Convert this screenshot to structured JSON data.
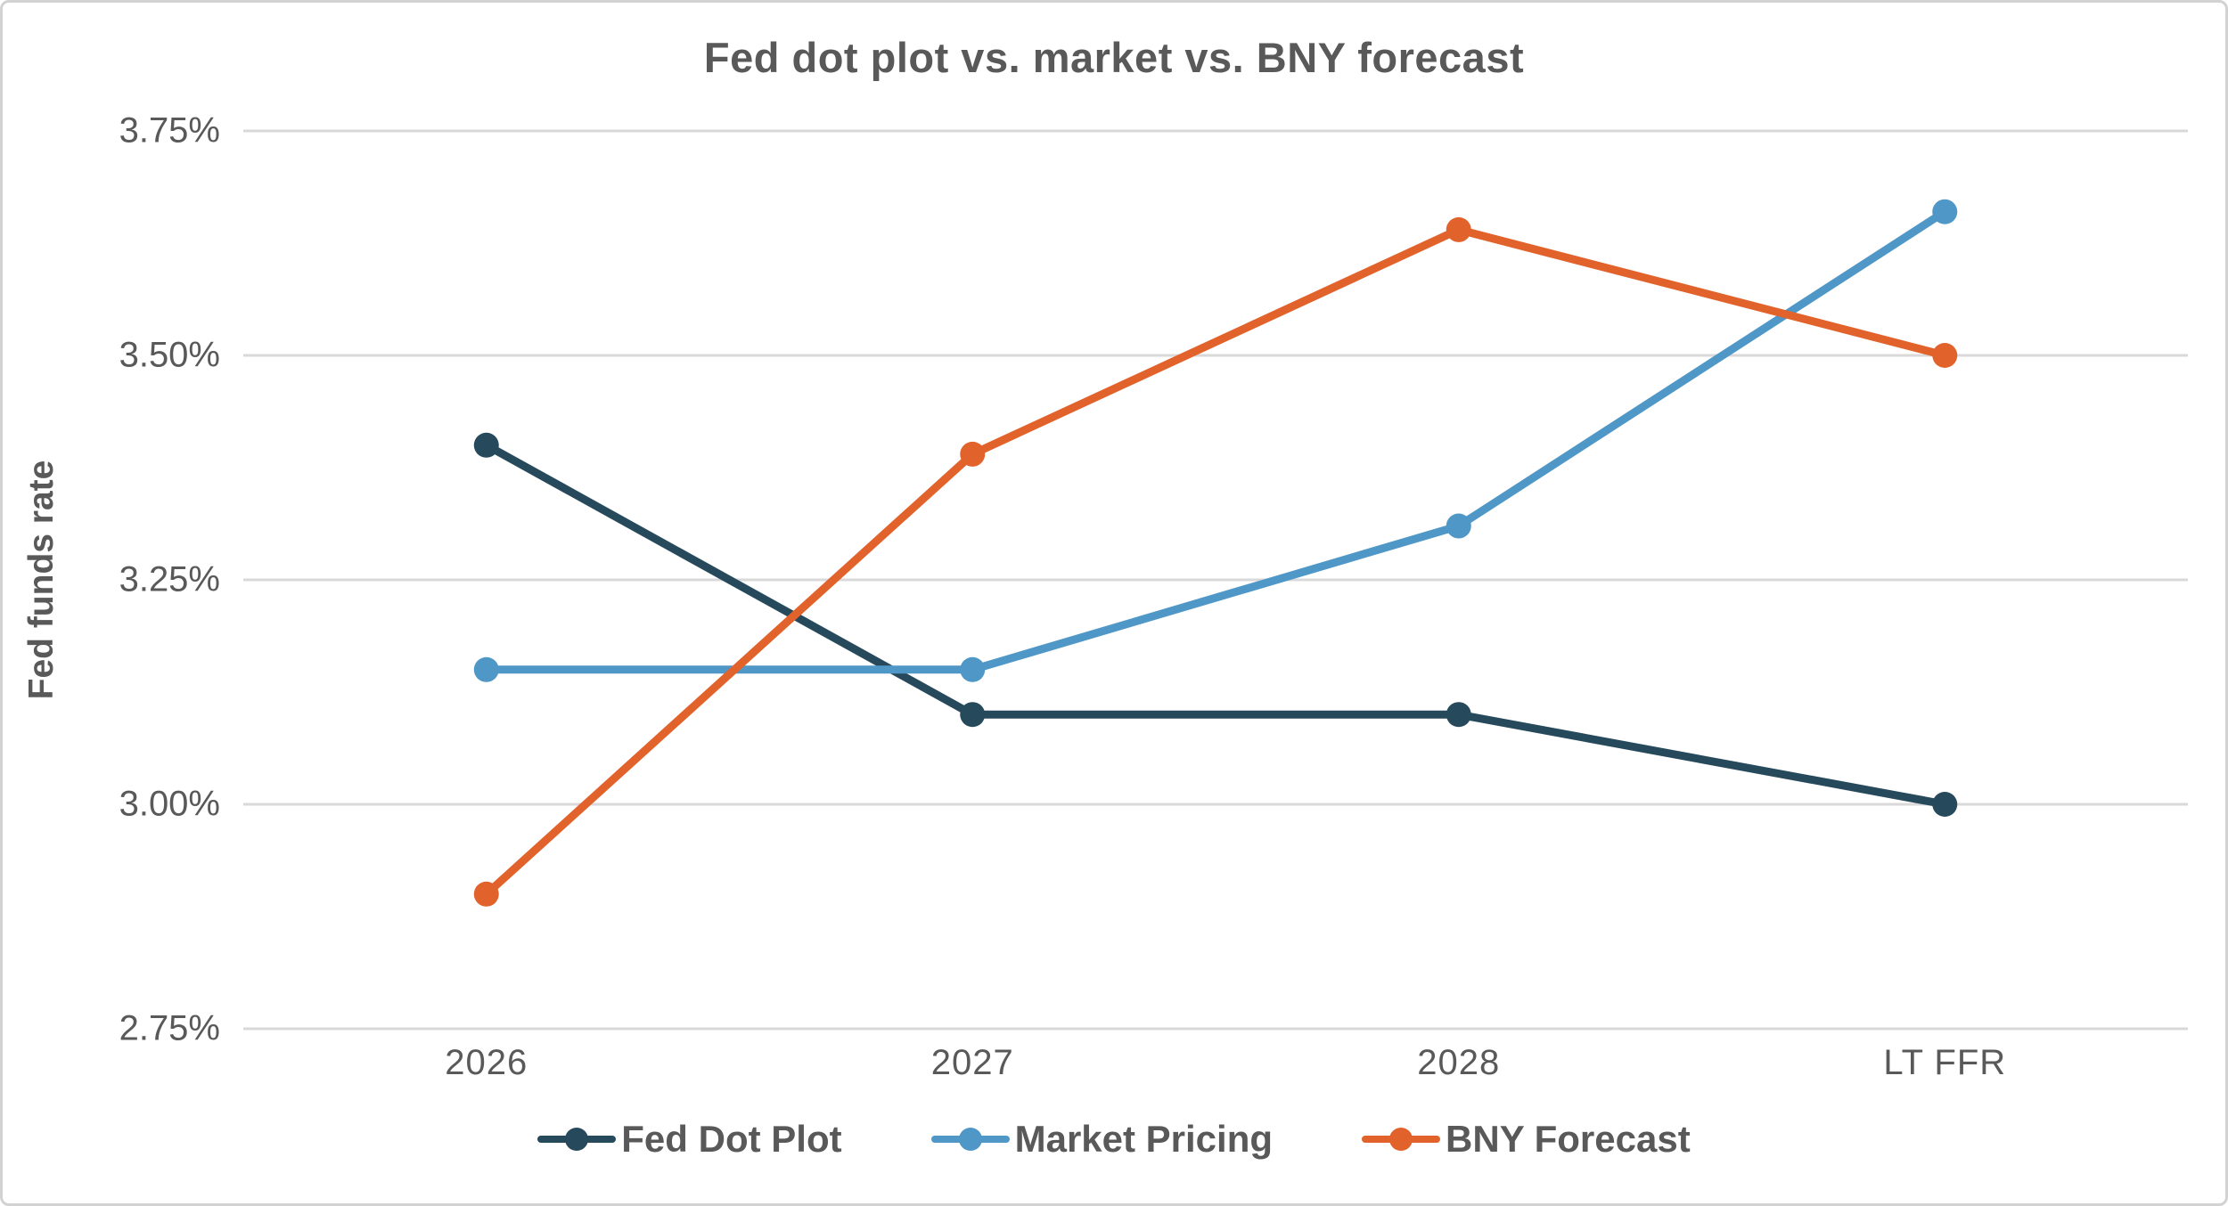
{
  "colors": {
    "title_text": "#595959",
    "axis_text": "#595959",
    "gridline": "#d9d9d9",
    "border": "#d2d2d2",
    "background": "#ffffff"
  },
  "chart_data": {
    "type": "line",
    "title": "Fed dot plot vs. market vs. BNY forecast",
    "xlabel": "",
    "ylabel": "Fed funds rate",
    "categories": [
      "2026",
      "2027",
      "2028",
      "LT FFR"
    ],
    "series": [
      {
        "name": "Fed Dot Plot",
        "color": "#26495C",
        "values": [
          3.4,
          3.1,
          3.1,
          3.0
        ]
      },
      {
        "name": "Market Pricing",
        "color": "#4F97C7",
        "values": [
          3.15,
          3.15,
          3.31,
          3.66
        ]
      },
      {
        "name": "BNY Forecast",
        "color": "#E2622B",
        "values": [
          2.9,
          3.39,
          3.64,
          3.5
        ]
      }
    ],
    "ylim": [
      2.75,
      3.75
    ],
    "yticks": [
      {
        "value": 3.75,
        "label": "3.75%"
      },
      {
        "value": 3.5,
        "label": "3.50%"
      },
      {
        "value": 3.25,
        "label": "3.25%"
      },
      {
        "value": 3.0,
        "label": "3.00%"
      },
      {
        "value": 2.75,
        "label": "2.75%"
      }
    ],
    "grid": true,
    "legend_position": "bottom",
    "marker": "circle"
  }
}
